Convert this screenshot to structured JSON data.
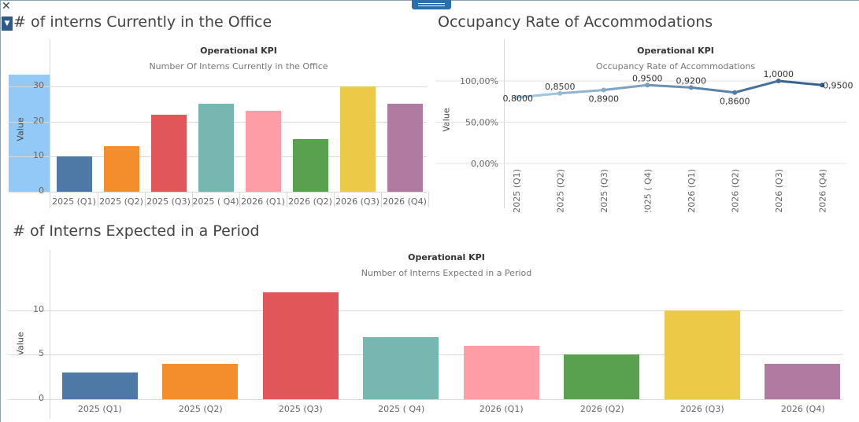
{
  "window": {
    "close_icon": "close-icon",
    "menu_icon": "dropdown-menu-icon",
    "drag_handle_icon": "drag-handle-icon"
  },
  "sheets": {
    "current": {
      "title": "# of interns Currently in the Office"
    },
    "occupancy": {
      "title": "Occupancy Rate of Accommodations"
    },
    "expected": {
      "title": "# of Interns Expected in a Period"
    }
  },
  "chart_data": [
    {
      "id": "current",
      "type": "bar",
      "title": "Operational KPI",
      "subtitle": "Number Of Interns Currently in the Office",
      "ylabel": "Value",
      "xlabel": "",
      "ylim": [
        0,
        32
      ],
      "yticks": [
        0,
        10,
        20,
        30
      ],
      "categories": [
        "2025 (Q1)",
        "2025 (Q2)",
        "2025 (Q3)",
        "2025 ( Q4)",
        "2026 (Q1)",
        "2026 (Q2)",
        "2026 (Q3)",
        "2026 (Q4)"
      ],
      "values": [
        10,
        13,
        22,
        25,
        23,
        15,
        30,
        25
      ],
      "colors": [
        "#4e79a7",
        "#f28e2b",
        "#e15759",
        "#76b7b2",
        "#ff9da7",
        "#59a14f",
        "#edc948",
        "#b07aa1"
      ],
      "grid": true
    },
    {
      "id": "occupancy",
      "type": "line",
      "title": "Operational KPI",
      "subtitle": "Occupancy Rate of Accommodations",
      "ylabel": "Value",
      "xlabel": "",
      "ylim": [
        0,
        1.08
      ],
      "yticks": [
        "0,00%",
        "50,00%",
        "100,00%"
      ],
      "ytick_values": [
        0,
        0.5,
        1.0
      ],
      "categories": [
        "2025 (Q1)",
        "2025 (Q2)",
        "2025 (Q3)",
        "2025 ( Q4)",
        "2026 (Q1)",
        "2026 (Q2)",
        "2026 (Q3)",
        "2026 (Q4)"
      ],
      "values": [
        0.8,
        0.85,
        0.89,
        0.95,
        0.92,
        0.86,
        1.0,
        0.95
      ],
      "labels": [
        "0,8000",
        "0,8500",
        "0,8900",
        "0,9500",
        "0,9200",
        "0,8600",
        "1,0000",
        "0,9500"
      ],
      "color_start": "#a9cce3",
      "color_end": "#2e5a88",
      "grid": true
    },
    {
      "id": "expected",
      "type": "bar",
      "title": "Operational KPI",
      "subtitle": "Number of Interns Expected in a Period",
      "ylabel": "Value",
      "xlabel": "",
      "ylim": [
        0,
        13.5
      ],
      "yticks": [
        0,
        5,
        10
      ],
      "categories": [
        "2025 (Q1)",
        "2025 (Q2)",
        "2025 (Q3)",
        "2025 ( Q4)",
        "2026 (Q1)",
        "2026 (Q2)",
        "2026 (Q3)",
        "2026 (Q4)"
      ],
      "values": [
        3,
        4,
        12,
        7,
        6,
        5,
        10,
        4
      ],
      "colors": [
        "#4e79a7",
        "#f28e2b",
        "#e15759",
        "#76b7b2",
        "#ff9da7",
        "#59a14f",
        "#edc948",
        "#b07aa1"
      ],
      "grid": true
    }
  ]
}
